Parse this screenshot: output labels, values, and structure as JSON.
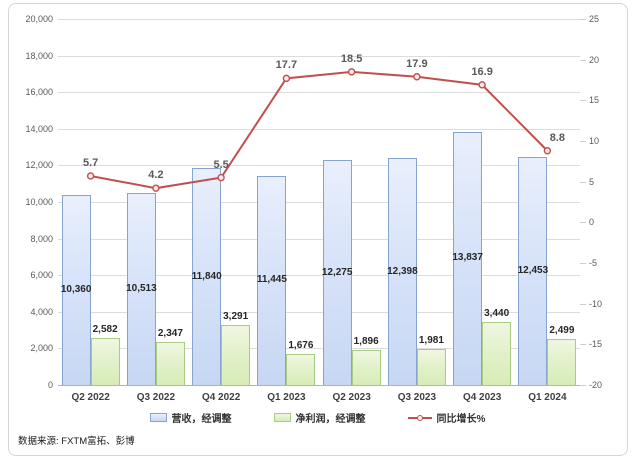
{
  "source": {
    "text": "数据来源: FXTM富拓、彭博"
  },
  "colors": {
    "revenue_fill_top": "#e9effc",
    "revenue_fill_bottom": "#c7d7f3",
    "revenue_border": "#86a4ce",
    "profit_fill_top": "#f0f7e1",
    "profit_fill_bottom": "#d7ecb6",
    "profit_border": "#a9cc85",
    "growth_line": "#c0504d",
    "gridline": "#dcdcdc",
    "axis_text": "#595959"
  },
  "chart_data": {
    "type": "bar",
    "subtype": "combo-clustered-bar-with-line",
    "title": "",
    "categories": [
      "Q2 2022",
      "Q3 2022",
      "Q4 2022",
      "Q1 2023",
      "Q2 2023",
      "Q3 2023",
      "Q4 2023",
      "Q1 2024"
    ],
    "series": [
      {
        "name": "营收，经调整",
        "kind": "bar",
        "axis": "left",
        "values": [
          10360,
          10513,
          11840,
          11445,
          12275,
          12398,
          13837,
          12453
        ]
      },
      {
        "name": "净利润，经调整",
        "kind": "bar",
        "axis": "left",
        "values": [
          2582,
          2347,
          3291,
          1676,
          1896,
          1981,
          3440,
          2499
        ]
      },
      {
        "name": "同比增长%",
        "kind": "line",
        "axis": "right",
        "values": [
          5.7,
          4.2,
          5.5,
          17.7,
          18.5,
          17.9,
          16.9,
          8.8
        ]
      }
    ],
    "left_axis": {
      "min": 0,
      "max": 20000,
      "step": 2000
    },
    "right_axis": {
      "min": -20,
      "max": 25,
      "step": 5
    },
    "grid": true,
    "legend_position": "bottom",
    "data_labels": true
  }
}
